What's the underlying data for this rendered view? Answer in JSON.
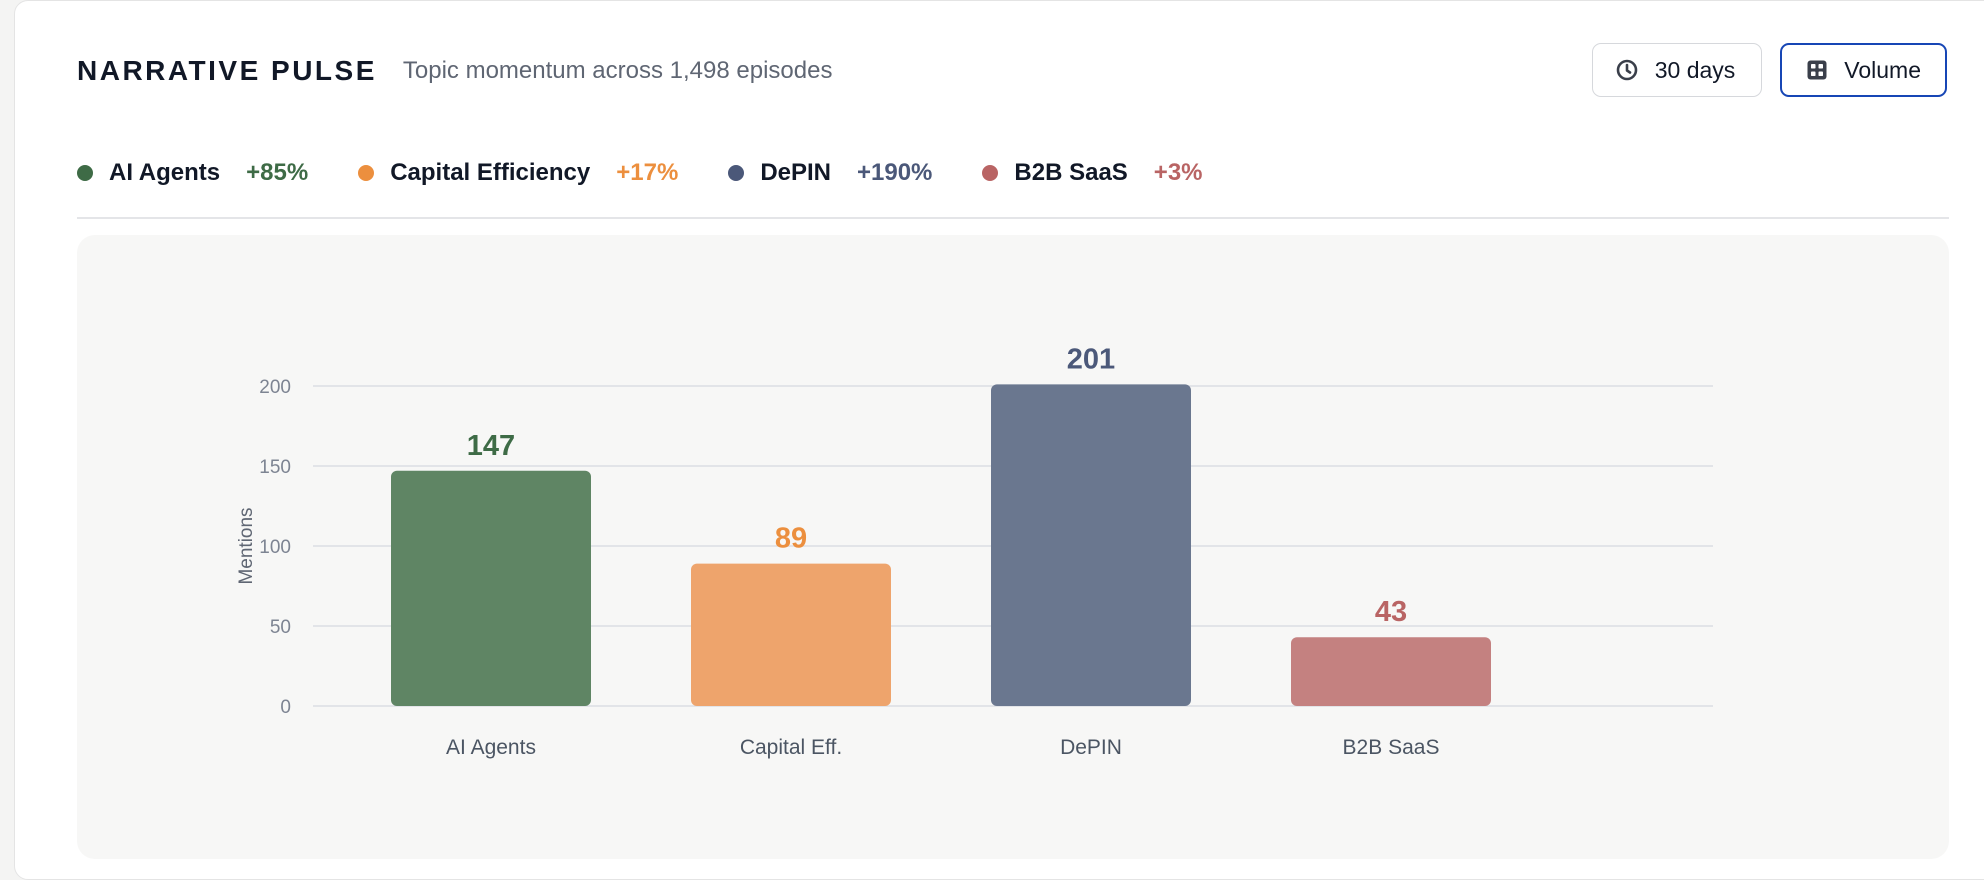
{
  "header": {
    "title": "NARRATIVE PULSE",
    "subtitle": "Topic momentum across 1,498 episodes"
  },
  "controls": {
    "range_label": "30 days",
    "range_icon": "clock-icon",
    "mode_label": "Volume",
    "mode_icon": "grid-icon",
    "active": "Volume",
    "accent": "#1746b5"
  },
  "legend": [
    {
      "label": "AI Agents",
      "change": "+85%",
      "color": "#3e6b46"
    },
    {
      "label": "Capital Efficiency",
      "change": "+17%",
      "color": "#ec8f3e"
    },
    {
      "label": "DePIN",
      "change": "+190%",
      "color": "#4b5879"
    },
    {
      "label": "B2B SaaS",
      "change": "+3%",
      "color": "#b96464"
    }
  ],
  "chart_data": {
    "type": "bar",
    "categories": [
      "AI Agents",
      "Capital Eff.",
      "DePIN",
      "B2B SaaS"
    ],
    "values": [
      147,
      89,
      201,
      43
    ],
    "colors": [
      "#5f8564",
      "#eea46c",
      "#6a778f",
      "#c48180"
    ],
    "label_colors": [
      "#3e6b46",
      "#ec8f3e",
      "#4b5879",
      "#b96464"
    ],
    "ylabel": "Mentions",
    "ylim": [
      0,
      200
    ],
    "yticks": [
      0,
      50,
      100,
      150,
      200
    ],
    "grid": true
  }
}
